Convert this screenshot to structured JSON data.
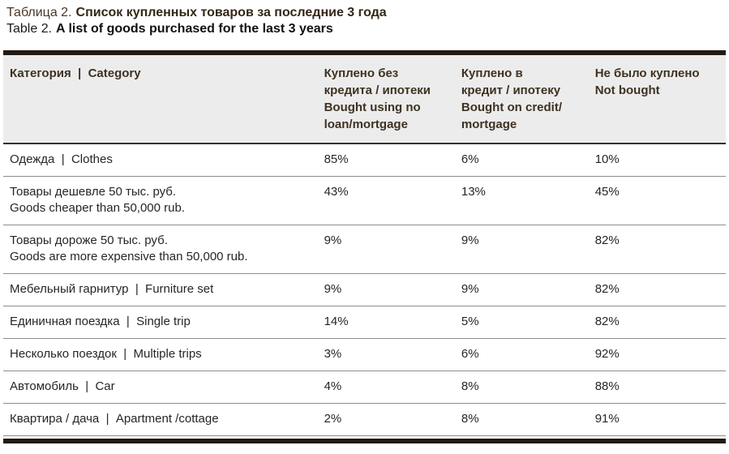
{
  "page": {
    "caption": {
      "ru_prefix": "Таблица 2.",
      "ru_title": "Список купленных товаров за последние 3 года",
      "en_prefix": "Table 2.",
      "en_title": "A list of goods purchased for the last 3 years"
    }
  },
  "colors": {
    "rule_bar": "#221a12",
    "header_background": "#ececec",
    "header_text": "#3f3122",
    "caption_ru_text": "#4a3626",
    "body_text": "#262626",
    "row_divider": "#8d8d8d"
  },
  "table": {
    "headers": [
      "Категория  |  Category",
      "Куплено без\nкредита / ипотеки\nBought using no\nloan/mortgage",
      "Куплено в\nкредит / ипотеку\nBought on credit/\nmortgage",
      "Не было куплено\nNot bought"
    ],
    "rows": [
      {
        "category": "Одежда  |  Clothes",
        "no_loan": "85%",
        "credit": "6%",
        "not_bought": "10%"
      },
      {
        "category": "Товары дешевле 50 тыс. руб.\nGoods cheaper than 50,000 rub.",
        "no_loan": "43%",
        "credit": "13%",
        "not_bought": "45%"
      },
      {
        "category": "Товары дороже 50 тыс. руб.\nGoods are more expensive than 50,000 rub.",
        "no_loan": "9%",
        "credit": "9%",
        "not_bought": "82%"
      },
      {
        "category": "Мебельный гарнитур  |  Furniture set",
        "no_loan": "9%",
        "credit": "9%",
        "not_bought": "82%"
      },
      {
        "category": "Единичная поездка  |  Single trip",
        "no_loan": "14%",
        "credit": "5%",
        "not_bought": "82%"
      },
      {
        "category": "Несколько поездок  |  Multiple trips",
        "no_loan": "3%",
        "credit": "6%",
        "not_bought": "92%"
      },
      {
        "category": "Автомобиль  |  Car",
        "no_loan": "4%",
        "credit": "8%",
        "not_bought": "88%"
      },
      {
        "category": "Квартира / дача  |  Apartment /cottage",
        "no_loan": "2%",
        "credit": "8%",
        "not_bought": "91%"
      }
    ]
  }
}
